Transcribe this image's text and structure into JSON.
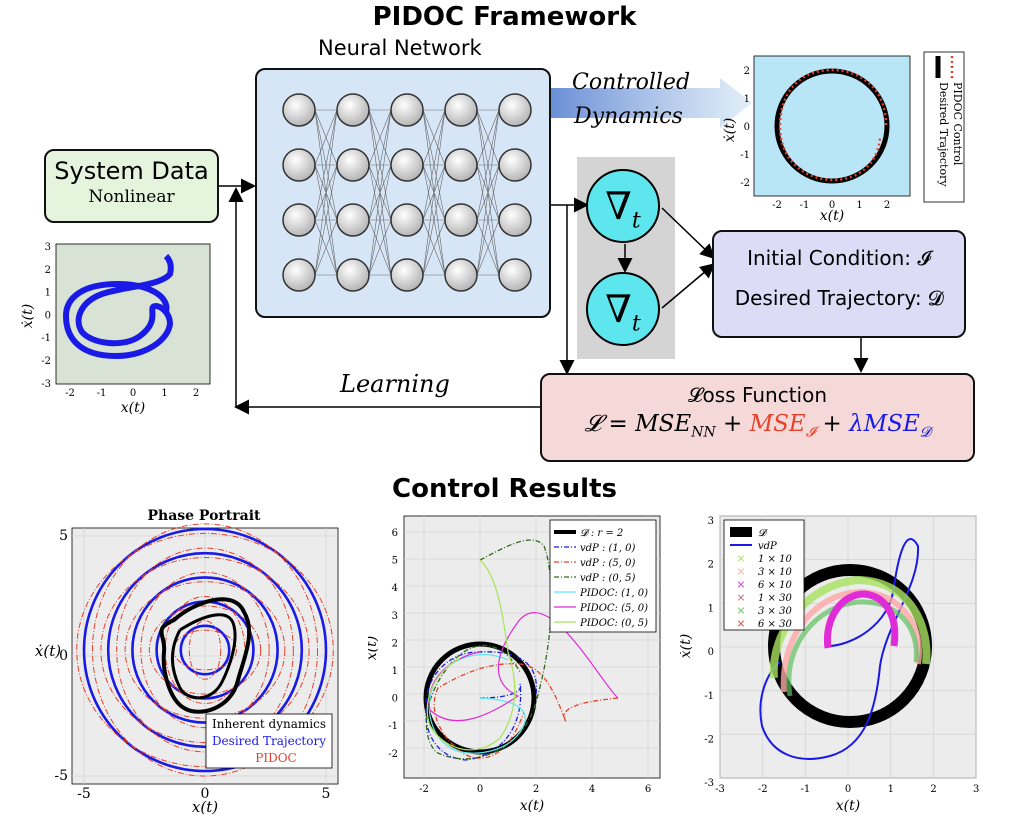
{
  "titles": {
    "framework": "PIDOC Framework",
    "results": "Control Results",
    "neural_network": "Neural Network"
  },
  "system_data": {
    "title": "System Data",
    "subtitle": "Nonlinear"
  },
  "arrow_labels": {
    "controlled": "Controlled",
    "dynamics": "Dynamics",
    "learning": "Learning"
  },
  "nabla": {
    "symbol": "∇",
    "sub": "t"
  },
  "condition_box": {
    "line1": "Initial Condition: 𝓘",
    "line2": "Desired Trajectory: 𝓓"
  },
  "loss_box": {
    "title": "𝓛oss Function",
    "eq_a": "𝓛 = MSE",
    "eq_a_sub": "NN",
    "eq_plus": " + ",
    "eq_b": "MSE",
    "eq_b_sub": "𝓘",
    "eq_c": "λMSE",
    "eq_c_sub": "𝓓"
  },
  "colors": {
    "red": "#e8412a",
    "blue": "#1a1ae6",
    "green_box": "#e5f5dd",
    "blue_box": "#d6e6f7",
    "purple_box": "#dcdcf7",
    "pink_box": "#f5d9d9"
  },
  "small_plot_top": {
    "legend": [
      "Desired Trajectory",
      "PIDOC Control"
    ],
    "xlabel": "x(t)",
    "ylabel": "ẋ(t)",
    "xticks": [
      "-2",
      "-1",
      "0",
      "1",
      "2"
    ],
    "yticks": [
      "2",
      "1",
      "0",
      "-1",
      "-2"
    ]
  },
  "small_plot_left": {
    "xlabel": "x(t)",
    "ylabel": "ẋ(t)",
    "xticks": [
      "-2",
      "-1",
      "0",
      "1",
      "2"
    ],
    "yticks": [
      "3",
      "2",
      "1",
      "0",
      "-1",
      "-2",
      "-3"
    ]
  },
  "chart_data": [
    {
      "type": "line",
      "title": "Phase Portrait",
      "xlabel": "x(t)",
      "ylabel": "ẋ(t)",
      "xlim": [
        -5.5,
        5.5
      ],
      "ylim": [
        -5.5,
        5.5
      ],
      "xticks": [
        "-5",
        "0",
        "5"
      ],
      "yticks": [
        "5",
        "0",
        "-5"
      ],
      "legend": [
        "Inherent dynamics",
        "Desired Trajectory",
        "PIDOC"
      ],
      "legend_position": "bottom-right",
      "series": [
        {
          "name": "Inherent dynamics",
          "description_type": "limit cycle",
          "color": "#000000"
        },
        {
          "name": "Desired Trajectory",
          "radii": [
            1,
            2,
            3,
            4,
            5
          ],
          "color": "#1a1ae6"
        },
        {
          "name": "PIDOC",
          "color": "#e8412a"
        }
      ]
    },
    {
      "type": "line",
      "xlabel": "x(t)",
      "ylabel": "ẋ(t)",
      "xlim": [
        -3,
        6.5
      ],
      "ylim": [
        -3,
        6.5
      ],
      "xticks": [
        "-2",
        "0",
        "2",
        "4",
        "6"
      ],
      "yticks": [
        "6",
        "5",
        "4",
        "3",
        "2",
        "1",
        "0",
        "-1",
        "-2"
      ],
      "legend": [
        "𝓓 : r = 2",
        "vdP : (1, 0)",
        "vdP : (5, 0)",
        "vdP : (0, 5)",
        "PIDOC: (1, 0)",
        "PIDOC: (5, 0)",
        "PIDOC: (0, 5)"
      ],
      "legend_position": "top-right"
    },
    {
      "type": "line",
      "xlabel": "x(t)",
      "ylabel": "ẋ(t)",
      "xlim": [
        -3,
        3
      ],
      "ylim": [
        -3,
        3
      ],
      "xticks": [
        "-3",
        "-2",
        "-1",
        "0",
        "1",
        "2",
        "3"
      ],
      "yticks": [
        "3",
        "2",
        "1",
        "0",
        "-1",
        "-2",
        "-3"
      ],
      "legend": [
        "𝓓",
        "vdP",
        "1 × 10",
        "3 × 10",
        "6 × 10",
        "1 × 30",
        "3 × 30",
        "6 × 30"
      ],
      "legend_position": "top-left"
    }
  ]
}
